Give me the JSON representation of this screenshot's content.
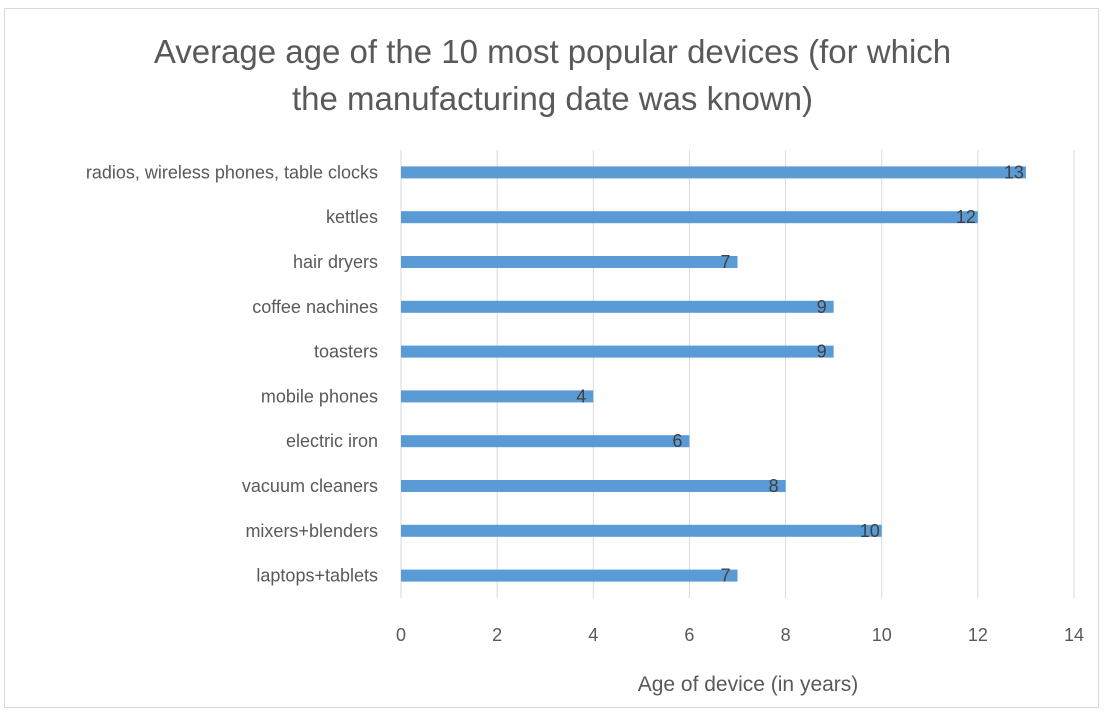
{
  "chart_data": {
    "type": "bar",
    "orientation": "horizontal",
    "title_lines": [
      "Average age of the 10 most popular devices (for which",
      "the manufacturing date was known)"
    ],
    "xlabel": "Age of device (in years)",
    "ylabel": "",
    "xlim": [
      0,
      14
    ],
    "xticks": [
      "0",
      "2",
      "4",
      "6",
      "8",
      "10",
      "12",
      "14"
    ],
    "grid": "vertical",
    "legend": "none",
    "bar_color": "#5b9bd5",
    "categories": [
      "radios, wireless phones, table clocks",
      "kettles",
      "hair dryers",
      "coffee nachines",
      "toasters",
      "mobile phones",
      "electric iron",
      "vacuum cleaners",
      "mixers+blenders",
      "laptops+tablets"
    ],
    "values": [
      13,
      12,
      7,
      9,
      9,
      4,
      6,
      8,
      10,
      7
    ]
  }
}
